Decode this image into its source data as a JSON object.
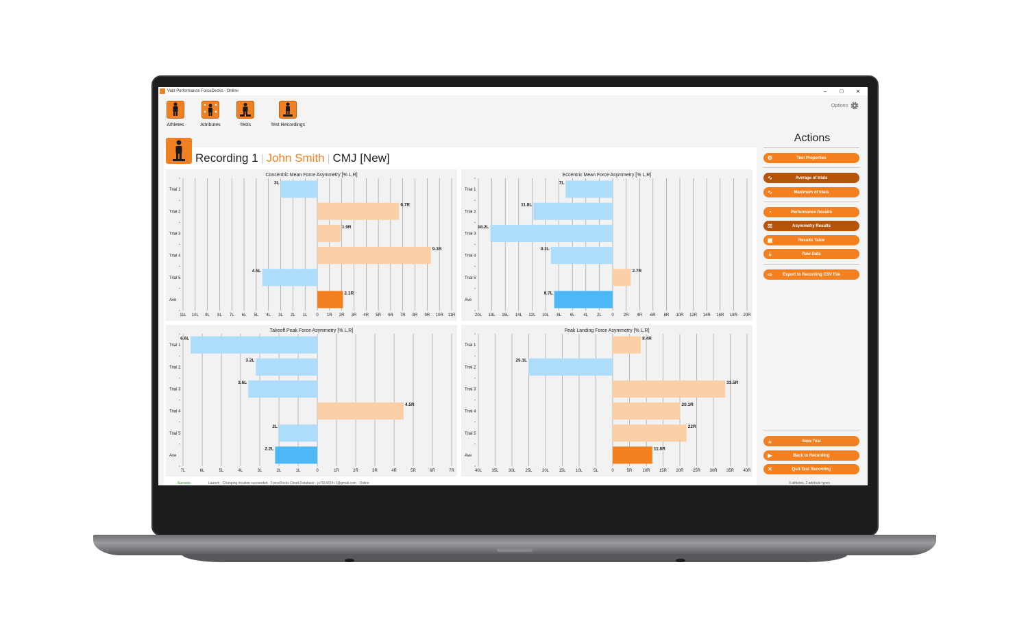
{
  "window": {
    "title": "Vald Performance ForceDecks - Online",
    "controls": [
      "–",
      "▢",
      "✕"
    ]
  },
  "nav": {
    "items": [
      {
        "label": "Athletes",
        "icon": "athlete-icon"
      },
      {
        "label": "Attributes",
        "icon": "attributes-icon"
      },
      {
        "label": "Tests",
        "icon": "tests-icon"
      },
      {
        "label": "Test Recordings",
        "icon": "test-recordings-icon"
      }
    ],
    "options_label": "Options"
  },
  "header": {
    "recording": "Recording 1",
    "separator": "|",
    "athlete": "John Smith",
    "test": "CMJ [New]"
  },
  "actions": {
    "title": "Actions",
    "buttons": {
      "test_properties": "Test Properties",
      "average_of_trials": "Average of trials",
      "maximum_of_trials": "Maximum of trials",
      "performance_results": "Performance Results",
      "asymmetry_results": "Asymmetry Results",
      "results_table": "Results Table",
      "raw_data": "Raw Data",
      "export_csv": "Export to Recording CSV File",
      "save_test": "Save Test",
      "back_to_recording": "Back to Recording",
      "quit_test_recording": "Quit Test Recording"
    },
    "selected": [
      "average_of_trials",
      "asymmetry_results"
    ]
  },
  "status": {
    "state": "Success",
    "message": "Launch - Changing location succeeded - ForceDecks Cloud Database - js7914314+1@gmail.com - Online",
    "count": "3 athletes, 2 attribute types"
  },
  "colors": {
    "accent": "#f5801f",
    "accent_dark": "#b45309",
    "left_bar": "#aedcfb",
    "right_bar": "#fbd0a7",
    "left_ave": "#4db8f5",
    "right_ave": "#f5801f"
  },
  "chart_data": [
    {
      "type": "bar",
      "orientation": "horizontal",
      "title": "Concentric Mean Force Asymmetry [% L,R]",
      "categories": [
        "Trial 1",
        "Trial 2",
        "Trial 3",
        "Trial 4",
        "Trial 5",
        "Ave"
      ],
      "values": [
        -3,
        6.7,
        1.9,
        9.3,
        -4.5,
        2.1
      ],
      "labels": [
        "3L",
        "6.7R",
        "1.9R",
        "9.3R",
        "4.5L",
        "2.1R"
      ],
      "xlim": [
        -11,
        11
      ],
      "ticks": [
        -11,
        -10,
        -9,
        -8,
        -7,
        -6,
        -5,
        -4,
        -3,
        -2,
        -1,
        0,
        1,
        2,
        3,
        4,
        5,
        6,
        7,
        8,
        9,
        10,
        11
      ],
      "tick_labels": [
        "11L",
        "10L",
        "9L",
        "8L",
        "7L",
        "6L",
        "5L",
        "4L",
        "3L",
        "2L",
        "1L",
        "0",
        "1R",
        "2R",
        "3R",
        "4R",
        "5R",
        "6R",
        "7R",
        "8R",
        "9R",
        "10R",
        "11R"
      ]
    },
    {
      "type": "bar",
      "orientation": "horizontal",
      "title": "Eccentric Mean Force Asymmetry [% L,R]",
      "categories": [
        "Trial 1",
        "Trial 2",
        "Trial 3",
        "Trial 4",
        "Trial 5",
        "Ave"
      ],
      "values": [
        -7,
        -11.8,
        -18.2,
        -9.2,
        2.7,
        -8.7
      ],
      "labels": [
        "7L",
        "11.8L",
        "18.2L",
        "9.2L",
        "2.7R",
        "8.7L"
      ],
      "xlim": [
        -20,
        20
      ],
      "ticks": [
        -20,
        -18,
        -16,
        -14,
        -12,
        -10,
        -8,
        -6,
        -4,
        -2,
        0,
        2,
        4,
        6,
        8,
        10,
        12,
        14,
        16,
        18,
        20
      ],
      "tick_labels": [
        "20L",
        "18L",
        "16L",
        "14L",
        "12L",
        "10L",
        "8L",
        "6L",
        "4L",
        "2L",
        "0",
        "2R",
        "4R",
        "6R",
        "8R",
        "10R",
        "12R",
        "14R",
        "16R",
        "18R",
        "20R"
      ]
    },
    {
      "type": "bar",
      "orientation": "horizontal",
      "title": "Takeoff Peak Force Asymmetry [% L,R]",
      "categories": [
        "Trial 1",
        "Trial 2",
        "Trial 3",
        "Trial 4",
        "Trial 5",
        "Ave"
      ],
      "values": [
        -6.6,
        -3.2,
        -3.6,
        4.5,
        -2,
        -2.2
      ],
      "labels": [
        "6.6L",
        "3.2L",
        "3.6L",
        "4.5R",
        "2L",
        "2.2L"
      ],
      "xlim": [
        -7,
        7
      ],
      "ticks": [
        -7,
        -6,
        -5,
        -4,
        -3,
        -2,
        -1,
        0,
        1,
        2,
        3,
        4,
        5,
        6,
        7
      ],
      "tick_labels": [
        "7L",
        "6L",
        "5L",
        "4L",
        "3L",
        "2L",
        "1L",
        "0",
        "1R",
        "2R",
        "3R",
        "4R",
        "5R",
        "6R",
        "7R"
      ]
    },
    {
      "type": "bar",
      "orientation": "horizontal",
      "title": "Peak Landing Force Asymmetry [% L,R]",
      "categories": [
        "Trial 1",
        "Trial 2",
        "Trial 3",
        "Trial 4",
        "Trial 5",
        "Ave"
      ],
      "values": [
        8.4,
        -25.1,
        33.5,
        20.1,
        22,
        11.8
      ],
      "labels": [
        "8.4R",
        "25.1L",
        "33.5R",
        "20.1R",
        "22R",
        "11.8R"
      ],
      "xlim": [
        -40,
        40
      ],
      "ticks": [
        -40,
        -35,
        -30,
        -25,
        -20,
        -15,
        -10,
        -5,
        0,
        5,
        10,
        15,
        20,
        25,
        30,
        35,
        40
      ],
      "tick_labels": [
        "40L",
        "35L",
        "30L",
        "25L",
        "20L",
        "15L",
        "10L",
        "5L",
        "0",
        "5R",
        "10R",
        "15R",
        "20R",
        "25R",
        "30R",
        "35R",
        "40R"
      ]
    }
  ]
}
